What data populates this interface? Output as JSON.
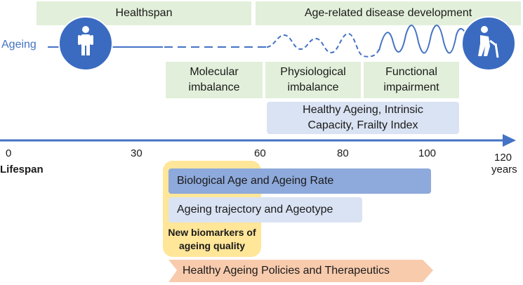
{
  "top_bars": {
    "healthspan": "Healthspan",
    "disease": "Age-related disease development"
  },
  "ageing_label": "Ageing",
  "stage_boxes": {
    "molecular": "Molecular imbalance",
    "physiological": "Physiological imbalance",
    "functional": "Functional impairment"
  },
  "composite_box": "Healthy Ageing, Intrinsic Capacity, Frailty Index",
  "axis": {
    "label": "Lifespan",
    "unit": "years",
    "ticks": [
      "0",
      "30",
      "60",
      "80",
      "100",
      "120"
    ]
  },
  "bottom_bars": {
    "biological_age": "Biological Age and Ageing Rate",
    "trajectory": "Ageing trajectory and Ageotype",
    "biomarkers": "New biomarkers of ageing quality",
    "policies": "Healthy Ageing Policies and Therapeutics"
  },
  "icons": [
    "person-icon",
    "elderly-person-icon"
  ],
  "colors": {
    "line": "#4472c4",
    "circle": "#3a6bc0",
    "green": "#e2efda",
    "lavender": "#dae3f3",
    "blue": "#8ea9db",
    "yellow": "#ffe699",
    "peach": "#f8cbad"
  }
}
